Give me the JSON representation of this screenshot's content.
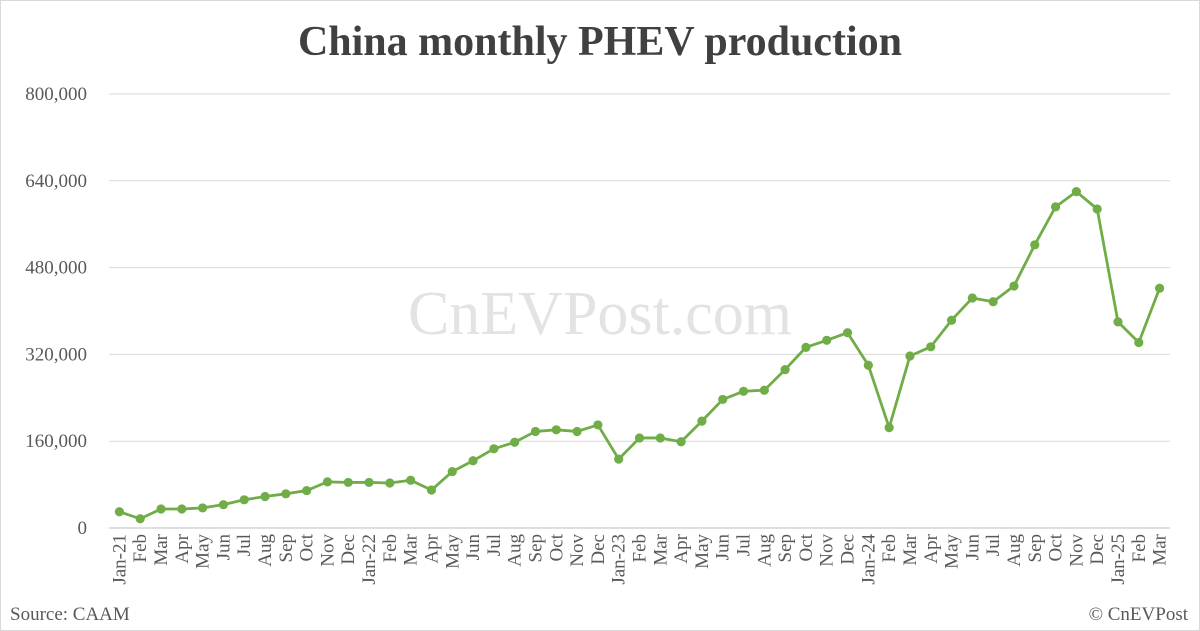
{
  "chart_data": {
    "type": "line",
    "title": "China monthly PHEV production",
    "xlabel": "",
    "ylabel": "",
    "ylim": [
      0,
      800000
    ],
    "yticks": [
      0,
      160000,
      320000,
      480000,
      640000,
      800000
    ],
    "ytick_labels": [
      "0",
      "160,000",
      "320,000",
      "480,000",
      "640,000",
      "800,000"
    ],
    "grid": true,
    "legend": "none",
    "series_color": "#70ad47",
    "categories": [
      "Jan-21",
      "Feb",
      "Mar",
      "Apr",
      "May",
      "Jun",
      "Jul",
      "Aug",
      "Sep",
      "Oct",
      "Nov",
      "Dec",
      "Jan-22",
      "Feb",
      "Mar",
      "Apr",
      "May",
      "Jun",
      "Jul",
      "Aug",
      "Sep",
      "Oct",
      "Nov",
      "Dec",
      "Jan-23",
      "Feb",
      "Mar",
      "Apr",
      "May",
      "Jun",
      "Jul",
      "Aug",
      "Sep",
      "Oct",
      "Nov",
      "Dec",
      "Jan-24",
      "Feb",
      "Mar",
      "Apr",
      "May",
      "Jun",
      "Jul",
      "Aug",
      "Sep",
      "Oct",
      "Nov",
      "Dec",
      "Jan-25",
      "Feb",
      "Mar"
    ],
    "series": [
      {
        "values": [
          30000,
          17000,
          35000,
          35000,
          37000,
          43000,
          52000,
          58000,
          63000,
          69000,
          85000,
          84000,
          84000,
          83000,
          88000,
          70000,
          104000,
          124000,
          146000,
          158000,
          178000,
          181000,
          178000,
          190000,
          127000,
          166000,
          166000,
          159000,
          197000,
          237000,
          252000,
          254000,
          292000,
          333000,
          346000,
          360000,
          300000,
          185000,
          317000,
          334000,
          383000,
          424000,
          417000,
          446000,
          522000,
          592000,
          620000,
          588000,
          380000,
          342000,
          442000
        ]
      }
    ]
  },
  "watermark": "CnEVPost.com",
  "source_note": "Source: CAAM",
  "copyright_note": "© CnEVPost"
}
